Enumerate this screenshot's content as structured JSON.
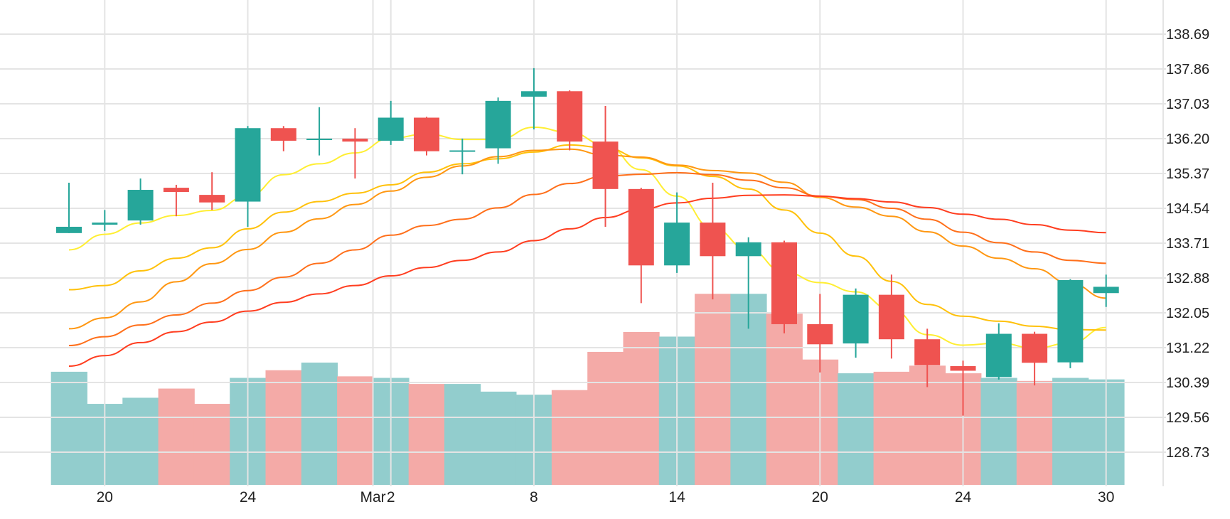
{
  "chart_data": {
    "type": "candlestick",
    "x_tick_labels": [
      {
        "label": "20",
        "index": 1
      },
      {
        "label": "24",
        "index": 5
      },
      {
        "label": "Mar",
        "index": 8.5
      },
      {
        "label": "2",
        "index": 9
      },
      {
        "label": "8",
        "index": 13
      },
      {
        "label": "14",
        "index": 17
      },
      {
        "label": "20",
        "index": 21
      },
      {
        "label": "24",
        "index": 25
      },
      {
        "label": "30",
        "index": 29
      }
    ],
    "y_ticks": [
      128.73,
      129.56,
      130.39,
      131.22,
      132.05,
      132.88,
      133.71,
      134.54,
      135.37,
      136.2,
      137.03,
      137.86,
      138.69
    ],
    "y_range": [
      127.95,
      139.45
    ],
    "grid": true,
    "colors": {
      "up": "#26a69a",
      "down": "#ef5350",
      "volume_up": "#92cdcd",
      "volume_down": "#f4aaa7",
      "ma_colors": [
        "#ffee33",
        "#ffc10a",
        "#ff9711",
        "#ff6f1a",
        "#ff3d1f"
      ]
    },
    "candles": [
      {
        "o": 133.95,
        "h": 135.15,
        "l": 133.95,
        "c": 134.1,
        "v": 0.74
      },
      {
        "o": 134.15,
        "h": 134.5,
        "l": 134.0,
        "c": 134.2,
        "v": 0.53
      },
      {
        "o": 134.25,
        "h": 135.25,
        "l": 134.15,
        "c": 134.98,
        "v": 0.57
      },
      {
        "o": 135.03,
        "h": 135.1,
        "l": 134.35,
        "c": 134.93,
        "v": 0.63
      },
      {
        "o": 134.86,
        "h": 135.4,
        "l": 134.5,
        "c": 134.68,
        "v": 0.53
      },
      {
        "o": 134.7,
        "h": 136.5,
        "l": 134.1,
        "c": 136.45,
        "v": 0.7
      },
      {
        "o": 136.45,
        "h": 136.5,
        "l": 135.9,
        "c": 136.15,
        "v": 0.75
      },
      {
        "o": 136.2,
        "h": 136.95,
        "l": 135.8,
        "c": 136.2,
        "v": 0.8
      },
      {
        "o": 136.2,
        "h": 136.45,
        "l": 135.25,
        "c": 136.13,
        "v": 0.71
      },
      {
        "o": 136.15,
        "h": 137.1,
        "l": 136.05,
        "c": 136.7,
        "v": 0.7
      },
      {
        "o": 136.7,
        "h": 136.72,
        "l": 135.8,
        "c": 135.9,
        "v": 0.66
      },
      {
        "o": 135.9,
        "h": 136.2,
        "l": 135.35,
        "c": 135.92,
        "v": 0.66
      },
      {
        "o": 135.97,
        "h": 137.18,
        "l": 135.6,
        "c": 137.1,
        "v": 0.61
      },
      {
        "o": 137.2,
        "h": 137.88,
        "l": 136.42,
        "c": 137.33,
        "v": 0.59
      },
      {
        "o": 137.33,
        "h": 137.35,
        "l": 135.92,
        "c": 136.13,
        "v": 0.62
      },
      {
        "o": 136.13,
        "h": 136.98,
        "l": 134.1,
        "c": 135.0,
        "v": 0.87
      },
      {
        "o": 135.0,
        "h": 135.03,
        "l": 132.28,
        "c": 133.18,
        "v": 1.0
      },
      {
        "o": 133.18,
        "h": 134.92,
        "l": 133.0,
        "c": 134.2,
        "v": 0.97
      },
      {
        "o": 134.2,
        "h": 135.15,
        "l": 132.37,
        "c": 133.4,
        "v": 1.25
      },
      {
        "o": 133.4,
        "h": 133.85,
        "l": 131.67,
        "c": 133.73,
        "v": 1.25
      },
      {
        "o": 133.73,
        "h": 133.77,
        "l": 131.56,
        "c": 131.78,
        "v": 1.12
      },
      {
        "o": 131.78,
        "h": 132.5,
        "l": 130.63,
        "c": 131.3,
        "v": 0.82
      },
      {
        "o": 131.32,
        "h": 132.63,
        "l": 130.98,
        "c": 132.48,
        "v": 0.73
      },
      {
        "o": 132.48,
        "h": 132.96,
        "l": 130.96,
        "c": 131.42,
        "v": 0.74
      },
      {
        "o": 131.42,
        "h": 131.67,
        "l": 130.28,
        "c": 130.8,
        "v": 0.78
      },
      {
        "o": 130.78,
        "h": 130.91,
        "l": 129.6,
        "c": 130.67,
        "v": 0.73
      },
      {
        "o": 130.52,
        "h": 131.8,
        "l": 130.46,
        "c": 131.55,
        "v": 0.7
      },
      {
        "o": 131.55,
        "h": 131.6,
        "l": 130.32,
        "c": 130.86,
        "v": 0.68
      },
      {
        "o": 130.87,
        "h": 132.85,
        "l": 130.73,
        "c": 132.83,
        "v": 0.7
      },
      {
        "o": 132.52,
        "h": 132.96,
        "l": 132.19,
        "c": 132.67,
        "v": 0.69
      }
    ],
    "moving_averages": [
      {
        "values": [
          133.55,
          133.92,
          134.19,
          134.37,
          134.49,
          134.83,
          135.34,
          135.6,
          135.86,
          136.21,
          136.31,
          136.18,
          136.18,
          136.47,
          136.35,
          136.05,
          135.46,
          134.83,
          134.07,
          133.56,
          133.02,
          132.77,
          132.55,
          132.13,
          131.53,
          131.28,
          131.33,
          131.21,
          131.33,
          131.7
        ]
      },
      {
        "values": [
          132.6,
          132.7,
          133.05,
          133.35,
          133.6,
          134.05,
          134.45,
          134.7,
          134.9,
          135.1,
          135.4,
          135.6,
          135.72,
          135.88,
          136.05,
          135.98,
          135.74,
          135.55,
          135.3,
          135.0,
          134.5,
          133.95,
          133.4,
          132.8,
          132.25,
          131.97,
          131.85,
          131.73,
          131.65,
          131.64
        ]
      },
      {
        "values": [
          131.67,
          131.93,
          132.31,
          132.79,
          133.22,
          133.56,
          133.97,
          134.29,
          134.63,
          134.95,
          135.28,
          135.55,
          135.77,
          135.92,
          135.95,
          135.81,
          135.76,
          135.57,
          135.44,
          135.38,
          135.16,
          134.8,
          134.57,
          134.35,
          133.98,
          133.64,
          133.35,
          133.1,
          132.75,
          132.4
        ]
      },
      {
        "values": [
          131.27,
          131.48,
          131.76,
          132.0,
          132.28,
          132.58,
          132.9,
          133.23,
          133.55,
          133.9,
          134.13,
          134.28,
          134.55,
          134.87,
          135.13,
          135.31,
          135.35,
          135.39,
          135.34,
          135.21,
          135.03,
          134.83,
          134.75,
          134.54,
          134.28,
          133.97,
          133.72,
          133.5,
          133.3,
          133.23
        ]
      },
      {
        "values": [
          130.78,
          131.03,
          131.34,
          131.6,
          131.83,
          132.09,
          132.3,
          132.5,
          132.7,
          132.93,
          133.13,
          133.3,
          133.5,
          133.77,
          134.05,
          134.32,
          134.52,
          134.67,
          134.78,
          134.85,
          134.86,
          134.83,
          134.77,
          134.69,
          134.56,
          134.4,
          134.28,
          134.15,
          134.02,
          133.96
        ]
      }
    ]
  }
}
